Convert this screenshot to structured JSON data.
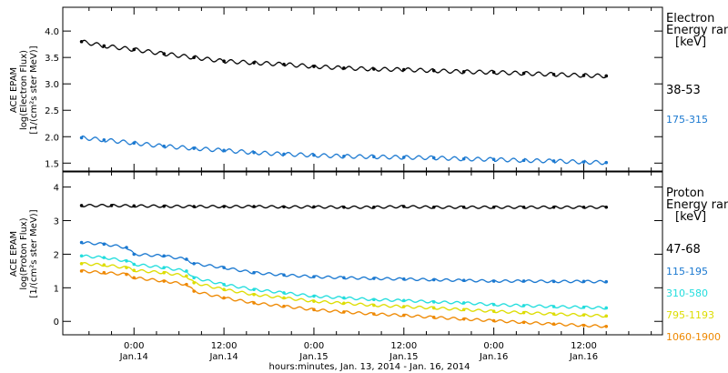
{
  "x_axis_title": "hours:minutes, Jan. 13, 2014 - Jan. 16, 2014",
  "x_ticks": [
    {
      "hours": 0,
      "time": "0:00",
      "day": "Jan.14"
    },
    {
      "hours": 12,
      "time": "12:00",
      "day": "Jan.14"
    },
    {
      "hours": 24,
      "time": "0:00",
      "day": "Jan.15"
    },
    {
      "hours": 36,
      "time": "12:00",
      "day": "Jan.15"
    },
    {
      "hours": 48,
      "time": "0:00",
      "day": "Jan.16"
    },
    {
      "hours": 60,
      "time": "12:00",
      "day": "Jan.16"
    }
  ],
  "chart_data": [
    {
      "type": "scatter",
      "ylabel_lines": [
        "ACE EPAM",
        "log(Electron Flux)",
        "[1/(cm²s ster MeV)]"
      ],
      "xlim": [
        -9.5,
        70.5
      ],
      "ylim": [
        1.35,
        4.45
      ],
      "yticks": [
        1.5,
        2.0,
        2.5,
        3.0,
        3.5,
        4.0
      ],
      "ytick_labels": [
        "1.5",
        "2.0",
        "2.5",
        "3.0",
        "3.5",
        "4.0"
      ],
      "legend_title": [
        "Electron",
        "Energy ran"
      ],
      "legend_unit": "[keV]",
      "series": [
        {
          "name": "38-53",
          "color": "#000000",
          "x": [
            -7,
            -4,
            0,
            4,
            8,
            12,
            16,
            20,
            24,
            28,
            32,
            36,
            40,
            44,
            48,
            52,
            56,
            60,
            63
          ],
          "y": [
            3.8,
            3.72,
            3.65,
            3.57,
            3.5,
            3.43,
            3.4,
            3.37,
            3.33,
            3.3,
            3.28,
            3.27,
            3.25,
            3.23,
            3.22,
            3.2,
            3.18,
            3.16,
            3.15
          ]
        },
        {
          "name": "175-315",
          "color": "#1a78d0",
          "x": [
            -7,
            -4,
            0,
            4,
            8,
            12,
            16,
            20,
            24,
            28,
            32,
            36,
            40,
            44,
            48,
            52,
            56,
            60,
            63
          ],
          "y": [
            1.98,
            1.94,
            1.88,
            1.82,
            1.78,
            1.74,
            1.7,
            1.67,
            1.65,
            1.63,
            1.62,
            1.61,
            1.6,
            1.58,
            1.57,
            1.55,
            1.54,
            1.52,
            1.51
          ]
        }
      ]
    },
    {
      "type": "scatter",
      "ylabel_lines": [
        "ACE EPAM",
        "log(Proton Flux)",
        "[1/(cm²s ster MeV)]"
      ],
      "xlim": [
        -9.5,
        70.5
      ],
      "ylim": [
        -0.4,
        4.45
      ],
      "yticks": [
        0,
        1,
        2,
        3,
        4
      ],
      "ytick_labels": [
        "0",
        "1",
        "2",
        "3",
        "4"
      ],
      "legend_title": [
        "Proton",
        "Energy ran"
      ],
      "legend_unit": "[keV]",
      "series": [
        {
          "name": "47-68",
          "color": "#000000",
          "x": [
            -7,
            -3,
            0,
            4,
            8,
            12,
            16,
            20,
            24,
            28,
            32,
            36,
            40,
            44,
            48,
            52,
            56,
            60,
            63
          ],
          "y": [
            3.45,
            3.45,
            3.44,
            3.43,
            3.42,
            3.42,
            3.42,
            3.41,
            3.41,
            3.4,
            3.4,
            3.42,
            3.4,
            3.4,
            3.4,
            3.4,
            3.4,
            3.4,
            3.4
          ]
        },
        {
          "name": "115-195",
          "color": "#1a78d0",
          "x": [
            -7,
            -4,
            -1,
            0,
            4,
            7,
            8,
            12,
            16,
            20,
            24,
            28,
            32,
            36,
            40,
            44,
            48,
            52,
            56,
            60,
            63
          ],
          "y": [
            2.35,
            2.3,
            2.2,
            2.0,
            1.95,
            1.85,
            1.72,
            1.6,
            1.45,
            1.38,
            1.33,
            1.3,
            1.28,
            1.26,
            1.24,
            1.22,
            1.2,
            1.2,
            1.19,
            1.19,
            1.18
          ]
        },
        {
          "name": "310-580",
          "color": "#22dddd",
          "x": [
            -7,
            -4,
            -1,
            0,
            4,
            7,
            8,
            12,
            16,
            20,
            24,
            28,
            32,
            36,
            40,
            44,
            48,
            52,
            56,
            60,
            63
          ],
          "y": [
            1.95,
            1.9,
            1.8,
            1.7,
            1.6,
            1.5,
            1.3,
            1.1,
            0.95,
            0.85,
            0.75,
            0.7,
            0.65,
            0.62,
            0.58,
            0.55,
            0.5,
            0.47,
            0.44,
            0.42,
            0.4
          ]
        },
        {
          "name": "795-1193",
          "color": "#dddd00",
          "x": [
            -7,
            -4,
            -1,
            0,
            4,
            7,
            8,
            12,
            16,
            20,
            24,
            28,
            32,
            36,
            40,
            44,
            48,
            52,
            56,
            60,
            63
          ],
          "y": [
            1.72,
            1.68,
            1.6,
            1.52,
            1.45,
            1.35,
            1.15,
            0.95,
            0.8,
            0.7,
            0.6,
            0.54,
            0.48,
            0.44,
            0.4,
            0.35,
            0.3,
            0.26,
            0.22,
            0.19,
            0.16
          ]
        },
        {
          "name": "1060-1900",
          "color": "#ee8800",
          "x": [
            -7,
            -4,
            -1,
            0,
            4,
            7,
            8,
            12,
            16,
            20,
            24,
            28,
            32,
            36,
            40,
            44,
            48,
            52,
            56,
            60,
            63
          ],
          "y": [
            1.5,
            1.45,
            1.4,
            1.3,
            1.2,
            1.1,
            0.9,
            0.7,
            0.55,
            0.45,
            0.35,
            0.28,
            0.22,
            0.18,
            0.12,
            0.07,
            0.02,
            -0.03,
            -0.08,
            -0.12,
            -0.15
          ]
        }
      ]
    }
  ]
}
